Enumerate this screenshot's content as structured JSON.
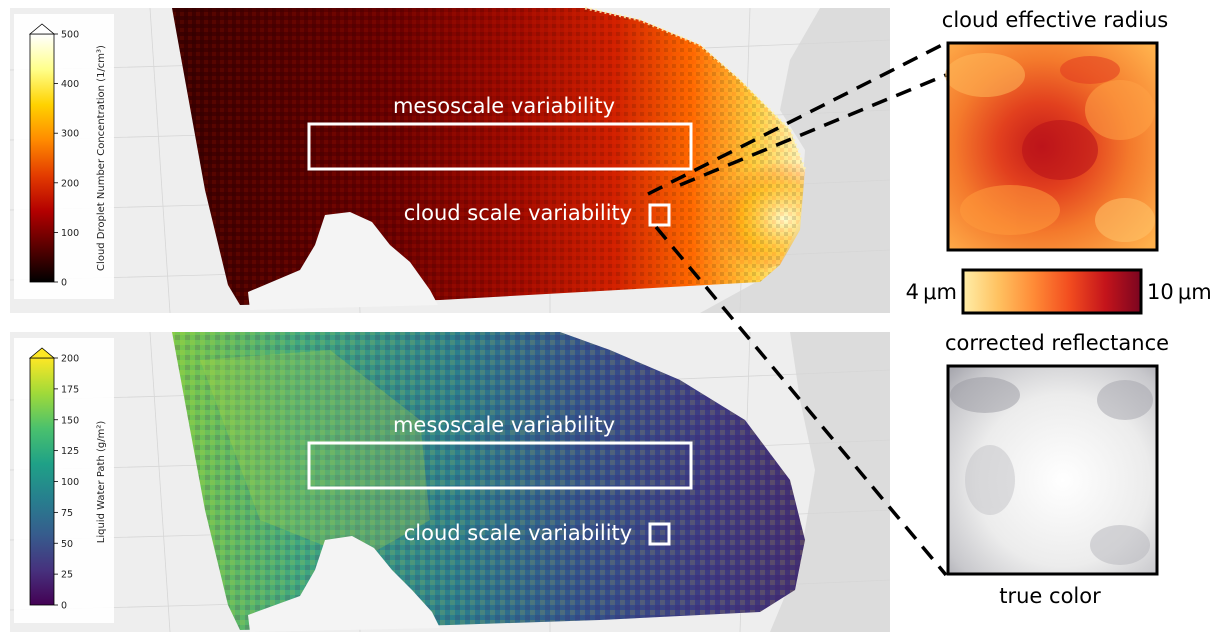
{
  "panels": {
    "top": {
      "colorbar": {
        "label": "Cloud Droplet Number Concentration (1/cm³)",
        "ticks": [
          "0",
          "100",
          "200",
          "300",
          "400",
          "500"
        ],
        "colormap": [
          "#000000",
          "#5a0000",
          "#b30000",
          "#e33b00",
          "#ff8a00",
          "#ffd200",
          "#ffff8a",
          "#ffffff"
        ]
      },
      "annotations": {
        "mesoscale": "mesoscale variability",
        "cloud_scale": "cloud scale variability"
      }
    },
    "bottom": {
      "colorbar": {
        "label": "Liquid Water Path (g/m²)",
        "ticks": [
          "0",
          "25",
          "50",
          "75",
          "100",
          "125",
          "150",
          "175",
          "200"
        ],
        "colormap": [
          "#440154",
          "#46327e",
          "#365c8d",
          "#277f8e",
          "#1fa187",
          "#4ac16d",
          "#a0da39",
          "#fde725"
        ]
      },
      "annotations": {
        "mesoscale": "mesoscale variability",
        "cloud_scale": "cloud scale variability"
      }
    }
  },
  "zoom": {
    "radius": {
      "title": "cloud effective radius",
      "colorbar_min": "4 μm",
      "colorbar_max": "10 μm",
      "colormap": [
        "#ffeea8",
        "#ffc160",
        "#ff8a36",
        "#f24c1f",
        "#c4141b",
        "#7a0520"
      ]
    },
    "reflectance": {
      "title": "corrected reflectance",
      "caption": "true color"
    }
  }
}
